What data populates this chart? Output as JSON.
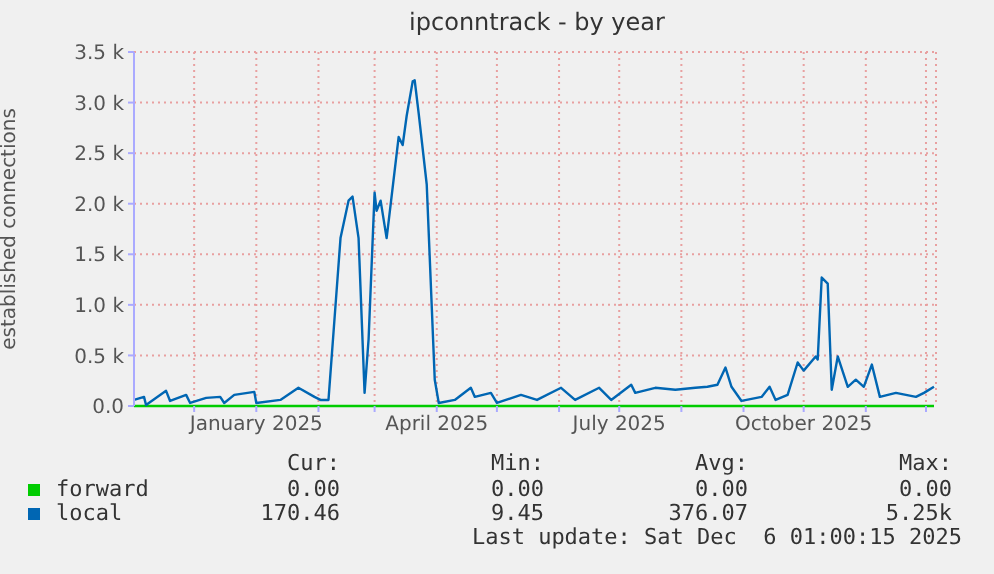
{
  "chart_data": {
    "type": "line",
    "title": "ipconntrack - by year",
    "ylabel": "established connections",
    "x": [
      "2024-11-01",
      "2024-11-06",
      "2024-11-07",
      "2024-11-17",
      "2024-11-19",
      "2024-11-27",
      "2024-11-29",
      "2024-12-07",
      "2024-12-14",
      "2024-12-16",
      "2024-12-21",
      "2024-12-31",
      "2025-01-01",
      "2025-01-13",
      "2025-01-22",
      "2025-01-30",
      "2025-02-02",
      "2025-02-06",
      "2025-02-09",
      "2025-02-12",
      "2025-02-16",
      "2025-02-18",
      "2025-02-21",
      "2025-02-24",
      "2025-02-26",
      "2025-03-01",
      "2025-03-02",
      "2025-03-04",
      "2025-03-07",
      "2025-03-09",
      "2025-03-13",
      "2025-03-15",
      "2025-03-17",
      "2025-03-20",
      "2025-03-21",
      "2025-03-23",
      "2025-03-27",
      "2025-03-31",
      "2025-04-02",
      "2025-04-10",
      "2025-04-18",
      "2025-04-20",
      "2025-04-28",
      "2025-05-01",
      "2025-05-13",
      "2025-05-21",
      "2025-06-02",
      "2025-06-09",
      "2025-06-21",
      "2025-06-27",
      "2025-07-07",
      "2025-07-09",
      "2025-07-19",
      "2025-07-29",
      "2025-08-08",
      "2025-08-14",
      "2025-08-19",
      "2025-08-23",
      "2025-08-26",
      "2025-08-31",
      "2025-09-10",
      "2025-09-14",
      "2025-09-17",
      "2025-09-23",
      "2025-09-28",
      "2025-10-01",
      "2025-10-07",
      "2025-10-08",
      "2025-10-10",
      "2025-10-13",
      "2025-10-15",
      "2025-10-18",
      "2025-10-23",
      "2025-10-27",
      "2025-10-31",
      "2025-11-04",
      "2025-11-08",
      "2025-11-16",
      "2025-11-26",
      "2025-11-30",
      "2025-12-05"
    ],
    "series": [
      {
        "name": "forward",
        "color": "#00cc00",
        "values": [
          0,
          0,
          0,
          0,
          0,
          0,
          0,
          0,
          0,
          0,
          0,
          0,
          0,
          0,
          0,
          0,
          0,
          0,
          0,
          0,
          0,
          0,
          0,
          0,
          0,
          0,
          0,
          0,
          0,
          0,
          0,
          0,
          0,
          0,
          0,
          0,
          0,
          0,
          0,
          0,
          0,
          0,
          0,
          0,
          0,
          0,
          0,
          0,
          0,
          0,
          0,
          0,
          0,
          0,
          0,
          0,
          0,
          0,
          0,
          0,
          0,
          0,
          0,
          0,
          0,
          0,
          0,
          0,
          0,
          0,
          0,
          0,
          0,
          0,
          0,
          0,
          0,
          0,
          0,
          0,
          0
        ]
      },
      {
        "name": "local",
        "color": "#0066b3",
        "values": [
          60,
          90,
          10,
          150,
          50,
          110,
          30,
          80,
          90,
          30,
          110,
          140,
          30,
          60,
          180,
          90,
          60,
          60,
          860,
          1660,
          2030,
          2070,
          1660,
          130,
          660,
          2110,
          1930,
          2030,
          1660,
          1990,
          2660,
          2580,
          2870,
          3210,
          3220,
          2890,
          2190,
          260,
          30,
          60,
          180,
          90,
          130,
          30,
          110,
          60,
          180,
          60,
          180,
          60,
          210,
          130,
          180,
          160,
          180,
          190,
          210,
          380,
          190,
          50,
          90,
          190,
          60,
          110,
          430,
          350,
          490,
          460,
          1270,
          1210,
          160,
          490,
          190,
          260,
          190,
          410,
          90,
          130,
          90,
          130,
          190
        ]
      }
    ],
    "xlim": [
      "2024-11-01",
      "2025-12-06"
    ],
    "xticks": [
      {
        "value": "2024-12-01",
        "label": null
      },
      {
        "value": "2025-01-01",
        "label": "January 2025"
      },
      {
        "value": "2025-02-01",
        "label": null
      },
      {
        "value": "2025-03-01",
        "label": null
      },
      {
        "value": "2025-04-01",
        "label": "April 2025"
      },
      {
        "value": "2025-05-01",
        "label": null
      },
      {
        "value": "2025-06-01",
        "label": null
      },
      {
        "value": "2025-07-01",
        "label": "July 2025"
      },
      {
        "value": "2025-08-01",
        "label": null
      },
      {
        "value": "2025-09-01",
        "label": null
      },
      {
        "value": "2025-10-01",
        "label": "October 2025"
      },
      {
        "value": "2025-11-01",
        "label": null
      },
      {
        "value": "2025-12-01",
        "label": null
      }
    ],
    "ylim": [
      0,
      3500
    ],
    "yticks": [
      {
        "value": 0,
        "label": "0.0"
      },
      {
        "value": 500,
        "label": "0.5 k"
      },
      {
        "value": 1000,
        "label": "1.0 k"
      },
      {
        "value": 1500,
        "label": "1.5 k"
      },
      {
        "value": 2000,
        "label": "2.0 k"
      },
      {
        "value": 2500,
        "label": "2.5 k"
      },
      {
        "value": 3000,
        "label": "3.0 k"
      },
      {
        "value": 3500,
        "label": "3.5 k"
      }
    ],
    "grid": true,
    "legend": "bottom",
    "annotations": [
      "Cur:",
      "Min:",
      "Avg:",
      "Max:",
      "0.00",
      "0.00",
      "0.00",
      "0.00",
      "170.46",
      "9.45",
      "376.07",
      "5.25k",
      "Last update: Sat Dec  6 01:00:15 2025"
    ]
  }
}
